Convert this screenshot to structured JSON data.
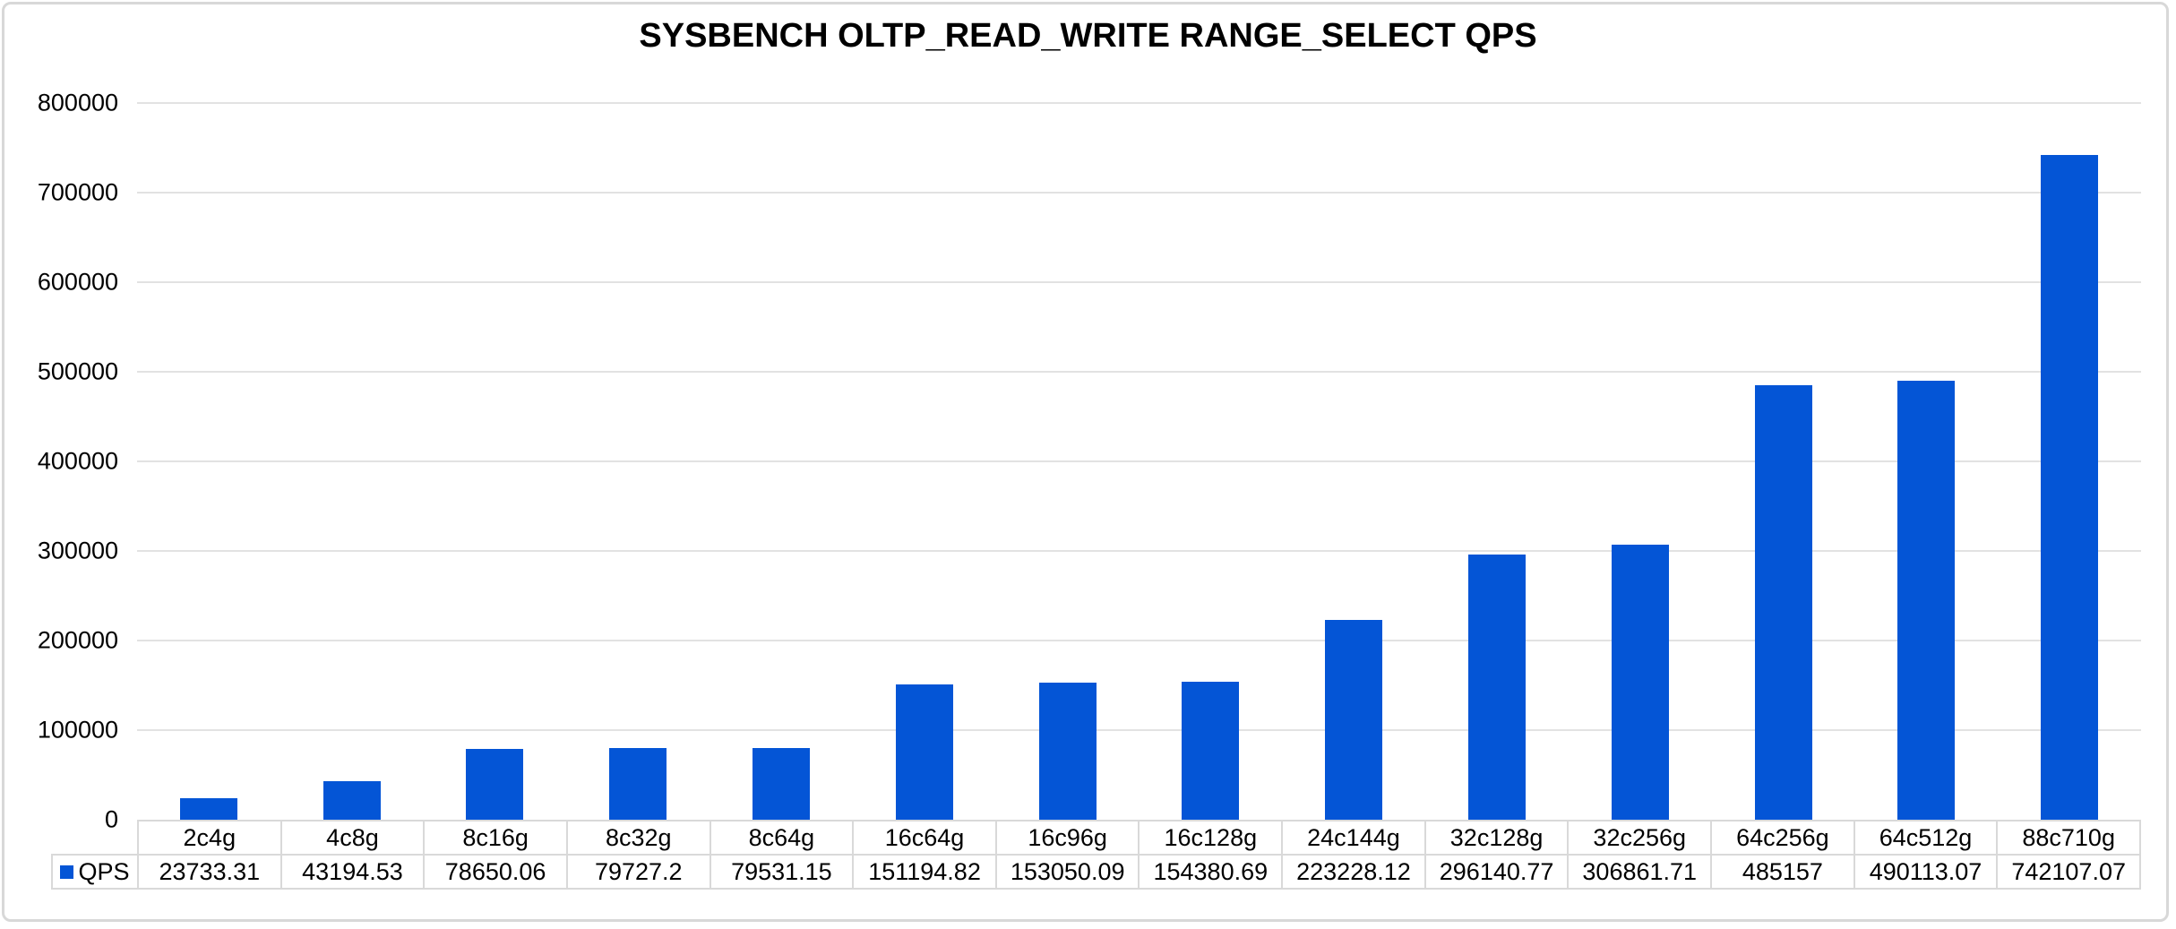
{
  "chart_data": {
    "type": "bar",
    "title": "SYSBENCH OLTP_READ_WRITE RANGE_SELECT QPS",
    "categories": [
      "2c4g",
      "4c8g",
      "8c16g",
      "8c32g",
      "8c64g",
      "16c64g",
      "16c96g",
      "16c128g",
      "24c144g",
      "32c128g",
      "32c256g",
      "64c256g",
      "64c512g",
      "88c710g"
    ],
    "series": [
      {
        "name": "QPS",
        "values": [
          23733.31,
          43194.53,
          78650.06,
          79727.2,
          79531.15,
          151194.82,
          153050.09,
          154380.69,
          223228.12,
          296140.77,
          306861.71,
          485157,
          490113.07,
          742107.07
        ],
        "value_labels": [
          "23733.31",
          "43194.53",
          "78650.06",
          "79727.2",
          "79531.15",
          "151194.82",
          "153050.09",
          "154380.69",
          "223228.12",
          "296140.77",
          "306861.71",
          "485157",
          "490113.07",
          "742107.07"
        ]
      }
    ],
    "xlabel": "",
    "ylabel": "",
    "ylim": [
      0,
      800000
    ],
    "y_tick_interval": 100000,
    "y_tick_labels": [
      "800000",
      "700000",
      "600000",
      "500000",
      "400000",
      "300000",
      "200000",
      "100000",
      "0"
    ],
    "grid": "horizontal",
    "legend_position": "data-table-left",
    "colors": {
      "bar": "#0455d6",
      "gridline": "#e2e2e2",
      "table_border": "#d9d9d9",
      "frame_border": "#d8d8d8",
      "text": "#000000",
      "background": "#ffffff"
    }
  }
}
